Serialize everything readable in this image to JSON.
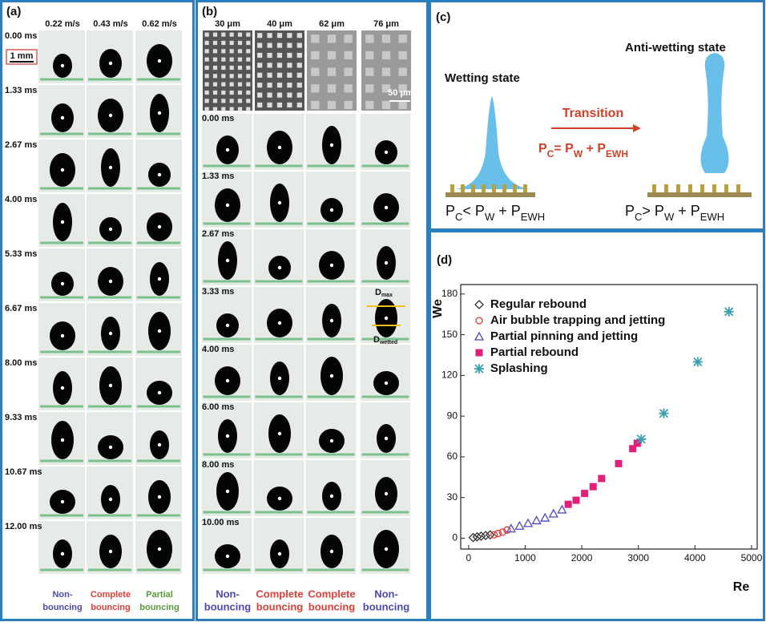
{
  "panel_a": {
    "label": "(a)",
    "speeds": [
      "0.22 m/s",
      "0.43 m/s",
      "0.62 m/s"
    ],
    "scale_bar": "1 mm",
    "times": [
      "0.00 ms",
      "1.33 ms",
      "2.67 ms",
      "4.00 ms",
      "5.33 ms",
      "6.67 ms",
      "8.00 ms",
      "9.33 ms",
      "10.67 ms",
      "12.00 ms"
    ],
    "outcomes": [
      [
        "Non-",
        "bouncing"
      ],
      [
        "Complete",
        "bouncing"
      ],
      [
        "Partial",
        "bouncing"
      ]
    ]
  },
  "panel_b": {
    "label": "(b)",
    "spacings": [
      "30 μm",
      "40 μm",
      "62 μm",
      "76 μm"
    ],
    "scale_bar": "50 μm",
    "times": [
      "0.00 ms",
      "1.33 ms",
      "2.67 ms",
      "3.33 ms",
      "4.00 ms",
      "6.00 ms",
      "8.00 ms",
      "10.00 ms"
    ],
    "d_max": [
      "D",
      "max"
    ],
    "d_wetted": [
      "D",
      "wetted"
    ],
    "outcomes": [
      [
        "Non-",
        "bouncing"
      ],
      [
        "Complete",
        "bouncing"
      ],
      [
        "Complete",
        "bouncing"
      ],
      [
        "Non-",
        "bouncing"
      ]
    ]
  },
  "panel_c": {
    "label": "(c)",
    "wetting_state": "Wetting state",
    "anti_wetting_state": "Anti-wetting state",
    "transition": "Transition",
    "transition_condition": [
      "P",
      "C",
      "= P",
      "W",
      " + P",
      "EWH"
    ],
    "wetting_condition": [
      "P",
      "C",
      "< P",
      "W",
      " + P",
      "EWH"
    ],
    "anti_wetting_condition": [
      "P",
      "C",
      "> P",
      "W",
      " + P",
      "EWH"
    ]
  },
  "chart_data": {
    "type": "scatter",
    "label": "(d)",
    "x_label": "Re",
    "y_label": "We",
    "xlim": [
      -140,
      5100
    ],
    "ylim": [
      -8,
      187
    ],
    "xticks": [
      0,
      1000,
      2000,
      3000,
      4000,
      5000
    ],
    "yticks": [
      0,
      30,
      60,
      90,
      120,
      150,
      180
    ],
    "series": [
      {
        "name": "Regular rebound",
        "color": "#333333",
        "marker": "diamond",
        "x": [
          80,
          150,
          220,
          300,
          380
        ],
        "values": [
          0.5,
          1,
          1.5,
          2,
          2.5
        ]
      },
      {
        "name": "Air bubble trapping and jetting",
        "color": "#e03a3a",
        "marker": "circle",
        "x": [
          450,
          520,
          600,
          680
        ],
        "values": [
          2.5,
          3.5,
          4.5,
          6
        ]
      },
      {
        "name": "Partial pinning and jetting",
        "color": "#4a4ac0",
        "marker": "triangle",
        "x": [
          750,
          900,
          1050,
          1200,
          1350,
          1500,
          1650
        ],
        "values": [
          7,
          9,
          11,
          13,
          15,
          18,
          21
        ]
      },
      {
        "name": "Partial rebound",
        "color": "#e0207a",
        "marker": "square",
        "x": [
          1760,
          1900,
          2050,
          2200,
          2350,
          2650,
          2900,
          2980
        ],
        "values": [
          25,
          28,
          33,
          38,
          44,
          55,
          66,
          70
        ]
      },
      {
        "name": "Splashing",
        "color": "#3aa0b0",
        "marker": "star",
        "x": [
          3050,
          3450,
          4050,
          4600
        ],
        "values": [
          73,
          92,
          130,
          167
        ]
      }
    ]
  }
}
